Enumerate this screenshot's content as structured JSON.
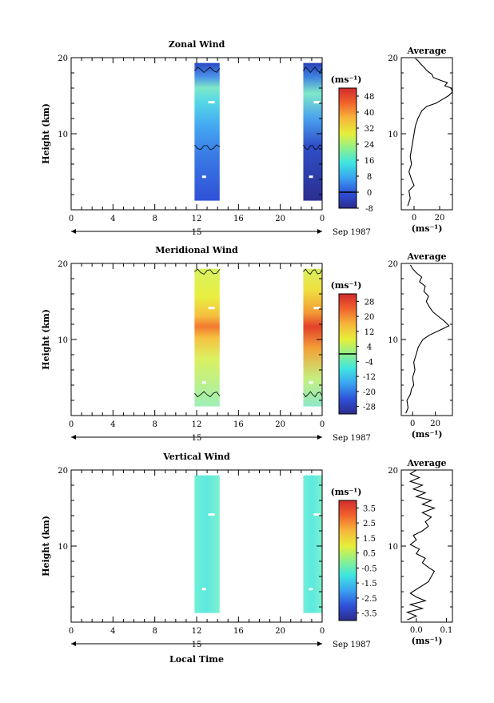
{
  "chart_data": {
    "type": "heatmap",
    "panels": [
      {
        "title": "Zonal Wind",
        "ylabel": "Height (km)",
        "ylim": [
          0,
          20
        ],
        "y_ticks": [
          "10",
          "20"
        ],
        "xlim": [
          0,
          24
        ],
        "x_ticks": [
          "0",
          "4",
          "8",
          "12",
          "16",
          "20",
          "0"
        ],
        "date_label": "15",
        "month_label": "Sep 1987",
        "data_segments": [
          {
            "start": 11.8,
            "end": 14.2
          },
          {
            "start": 22.2,
            "end": 24
          }
        ],
        "colorbar": {
          "unit": "(ms⁻¹)",
          "tick_labels": [
            "48",
            "40",
            "32",
            "24",
            "16",
            "8",
            "0",
            "-8"
          ],
          "range": [
            -8,
            52
          ],
          "zero_line": 0
        },
        "profile": {
          "title": "Average",
          "xlabel": "(ms⁻¹)",
          "x_ticks": [
            "0",
            "20"
          ],
          "x_tick_values": [
            0,
            20
          ],
          "xlim": [
            -10,
            30
          ],
          "y_ticks": [
            "10",
            "20"
          ],
          "points": [
            [
              -5,
              0.5
            ],
            [
              -3,
              1.5
            ],
            [
              -4,
              2.5
            ],
            [
              0,
              3.2
            ],
            [
              -2,
              4
            ],
            [
              -4,
              5
            ],
            [
              -2,
              6
            ],
            [
              -3,
              7
            ],
            [
              -2,
              8
            ],
            [
              -1,
              9
            ],
            [
              0,
              10
            ],
            [
              1,
              11
            ],
            [
              3,
              12
            ],
            [
              6,
              13
            ],
            [
              10,
              13.6
            ],
            [
              17,
              14
            ],
            [
              22,
              14.5
            ],
            [
              27,
              15
            ],
            [
              30,
              15.5
            ],
            [
              29,
              16
            ],
            [
              24,
              16.3
            ],
            [
              26,
              16.7
            ],
            [
              21,
              17
            ],
            [
              15,
              17.4
            ],
            [
              14,
              17.8
            ],
            [
              10,
              18.3
            ],
            [
              8,
              18.7
            ],
            [
              5,
              19.2
            ],
            [
              3,
              19.6
            ],
            [
              1,
              19.9
            ]
          ]
        }
      },
      {
        "title": "Meridional Wind",
        "ylabel": "Height (km)",
        "ylim": [
          0,
          20
        ],
        "y_ticks": [
          "10",
          "20"
        ],
        "xlim": [
          0,
          24
        ],
        "x_ticks": [
          "0",
          "4",
          "8",
          "12",
          "16",
          "20",
          "0"
        ],
        "date_label": "15",
        "month_label": "Sep 1987",
        "data_segments": [
          {
            "start": 11.8,
            "end": 14.2
          },
          {
            "start": 22.2,
            "end": 24
          }
        ],
        "colorbar": {
          "unit": "(ms⁻¹)",
          "tick_labels": [
            "28",
            "20",
            "12",
            "4",
            "-4",
            "-12",
            "-20",
            "-28"
          ],
          "range": [
            -32,
            32
          ],
          "zero_line": 0
        },
        "profile": {
          "title": "Average",
          "xlabel": "(ms⁻¹)",
          "x_ticks": [
            "0",
            "20"
          ],
          "x_tick_values": [
            0,
            20
          ],
          "xlim": [
            -10,
            35
          ],
          "y_ticks": [
            "10",
            "20"
          ],
          "points": [
            [
              -6,
              0.3
            ],
            [
              -4,
              1
            ],
            [
              -5,
              2
            ],
            [
              -2,
              2.8
            ],
            [
              -1,
              3.5
            ],
            [
              1,
              4
            ],
            [
              0,
              5
            ],
            [
              2,
              6
            ],
            [
              1,
              7
            ],
            [
              3,
              8
            ],
            [
              5,
              9
            ],
            [
              9,
              10
            ],
            [
              15,
              10.6
            ],
            [
              25,
              11.3
            ],
            [
              32,
              11.8
            ],
            [
              28,
              12.4
            ],
            [
              23,
              13
            ],
            [
              18,
              13.6
            ],
            [
              15,
              14.2
            ],
            [
              12,
              15
            ],
            [
              14,
              15.7
            ],
            [
              10,
              16.3
            ],
            [
              11,
              17
            ],
            [
              6,
              17.6
            ],
            [
              8,
              18.2
            ],
            [
              3,
              18.8
            ],
            [
              0,
              19.3
            ],
            [
              -2,
              19.8
            ]
          ]
        }
      },
      {
        "title": "Vertical Wind",
        "ylabel": "Height (km)",
        "ylim": [
          0,
          20
        ],
        "y_ticks": [
          "10",
          "20"
        ],
        "xlim": [
          0,
          24
        ],
        "x_ticks": [
          "0",
          "4",
          "8",
          "12",
          "16",
          "20",
          "0"
        ],
        "date_label": "15",
        "month_label": "Sep 1987",
        "xlabel": "Local Time",
        "data_segments": [
          {
            "start": 11.8,
            "end": 14.2
          },
          {
            "start": 22.2,
            "end": 24
          }
        ],
        "colorbar": {
          "unit": "(ms⁻¹)",
          "tick_labels": [
            "3.5",
            "2.5",
            "1.5",
            "0.5",
            "-0.5",
            "-1.5",
            "-2.5",
            "-3.5"
          ],
          "range": [
            -4,
            4
          ]
        },
        "profile": {
          "title": "Average",
          "xlabel": "(ms⁻¹)",
          "x_ticks": [
            "0.0",
            "0.1"
          ],
          "x_tick_values": [
            0,
            0.1
          ],
          "xlim": [
            -0.05,
            0.12
          ],
          "y_ticks": [
            "10",
            "20"
          ],
          "points": [
            [
              -0.03,
              0.3
            ],
            [
              0,
              0.8
            ],
            [
              -0.03,
              1.3
            ],
            [
              0.02,
              1.8
            ],
            [
              -0.02,
              2.3
            ],
            [
              0.03,
              2.8
            ],
            [
              0,
              3.3
            ],
            [
              -0.02,
              3.8
            ],
            [
              0,
              4.3
            ],
            [
              0.02,
              4.8
            ],
            [
              0.04,
              5.3
            ],
            [
              0.05,
              6
            ],
            [
              0.06,
              6.7
            ],
            [
              0.04,
              7.2
            ],
            [
              0.02,
              7.8
            ],
            [
              0.03,
              8.4
            ],
            [
              0,
              9
            ],
            [
              0.01,
              9.6
            ],
            [
              -0.02,
              10.2
            ],
            [
              0,
              10.8
            ],
            [
              -0.01,
              11.4
            ],
            [
              0.02,
              12
            ],
            [
              0.04,
              12.6
            ],
            [
              0.03,
              13.2
            ],
            [
              0.05,
              13.8
            ],
            [
              0.02,
              14.4
            ],
            [
              0.06,
              15
            ],
            [
              0.02,
              15.5
            ],
            [
              0.05,
              16
            ],
            [
              0,
              16.5
            ],
            [
              0.03,
              17
            ],
            [
              -0.01,
              17.5
            ],
            [
              0.02,
              18
            ],
            [
              -0.02,
              18.5
            ],
            [
              0.01,
              19
            ],
            [
              -0.02,
              19.5
            ],
            [
              0,
              20
            ]
          ]
        }
      }
    ]
  }
}
